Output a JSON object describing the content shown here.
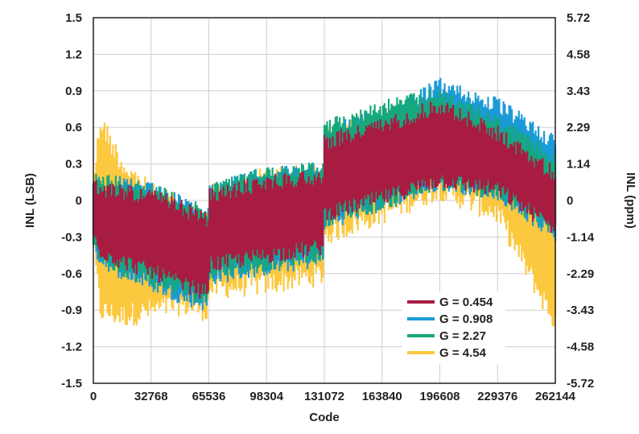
{
  "chart_data": {
    "type": "area",
    "title": "",
    "xlabel": "Code",
    "ylabel": "INL (LSB)",
    "y2label": "INL (ppm)",
    "xlim": [
      0,
      262144
    ],
    "ylim": [
      -1.5,
      1.5
    ],
    "x_ticks": [
      "0",
      "32768",
      "65536",
      "98304",
      "131072",
      "163840",
      "196608",
      "229376",
      "262144"
    ],
    "x_tick_values": [
      0,
      32768,
      65536,
      98304,
      131072,
      163840,
      196608,
      229376,
      262144
    ],
    "y_ticks": [
      "1.5",
      "1.2",
      "0.9",
      "0.6",
      "0.3",
      "0",
      "-0.3",
      "-0.6",
      "-0.9",
      "-1.2",
      "-1.5"
    ],
    "y_tick_values": [
      1.5,
      1.2,
      0.9,
      0.6,
      0.3,
      0,
      -0.3,
      -0.6,
      -0.9,
      -1.2,
      -1.5
    ],
    "y2_ticks": [
      "5.72",
      "4.58",
      "3.43",
      "2.29",
      "1.14",
      "0",
      "-1.14",
      "-2.29",
      "-3.43",
      "-4.58",
      "-5.72"
    ],
    "grid": true,
    "legend_position": "bottom-right",
    "series": [
      {
        "name": "G = 4.54",
        "color": "#fcc83f",
        "x": [
          0,
          4000,
          16000,
          32768,
          49152,
          65000,
          65536,
          98304,
          131000,
          131072,
          163840,
          196608,
          229376,
          262144
        ],
        "upper": [
          0.25,
          0.75,
          0.4,
          0.15,
          0.05,
          -0.08,
          0.15,
          0.28,
          0.32,
          0.62,
          0.76,
          0.93,
          0.71,
          0.42
        ],
        "lower": [
          -0.45,
          -1.0,
          -1.05,
          -1.0,
          -0.95,
          -1.0,
          -0.82,
          -0.78,
          -0.7,
          -0.38,
          -0.2,
          0.0,
          -0.2,
          -1.1
        ]
      },
      {
        "name": "G = 0.908",
        "color": "#1b9ad6",
        "x": [
          0,
          4000,
          16000,
          32768,
          49152,
          65000,
          65536,
          98304,
          131000,
          131072,
          163840,
          196608,
          229376,
          262144
        ],
        "upper": [
          0.22,
          0.2,
          0.2,
          0.15,
          0.05,
          -0.08,
          0.15,
          0.28,
          0.32,
          0.62,
          0.76,
          1.01,
          0.85,
          0.55
        ],
        "lower": [
          -0.42,
          -0.55,
          -0.65,
          -0.75,
          -0.85,
          -0.92,
          -0.7,
          -0.62,
          -0.55,
          -0.25,
          -0.1,
          0.08,
          0.0,
          -0.35
        ]
      },
      {
        "name": "G = 2.27",
        "color": "#16a87c",
        "x": [
          0,
          4000,
          16000,
          32768,
          49152,
          65000,
          65536,
          98304,
          131000,
          131072,
          163840,
          196608,
          229376,
          262144
        ],
        "upper": [
          0.24,
          0.22,
          0.22,
          0.15,
          0.06,
          -0.06,
          0.16,
          0.29,
          0.33,
          0.66,
          0.83,
          0.93,
          0.7,
          0.4
        ],
        "lower": [
          -0.4,
          -0.52,
          -0.62,
          -0.72,
          -0.8,
          -0.88,
          -0.65,
          -0.58,
          -0.5,
          -0.22,
          -0.08,
          0.08,
          0.0,
          -0.32
        ]
      },
      {
        "name": "G = 0.454",
        "color": "#a81c42",
        "x": [
          0,
          4000,
          16000,
          32768,
          49152,
          65000,
          65536,
          98304,
          131000,
          131072,
          163840,
          196608,
          229376,
          262144
        ],
        "upper": [
          0.18,
          0.15,
          0.15,
          0.1,
          0.02,
          -0.1,
          0.1,
          0.22,
          0.27,
          0.55,
          0.68,
          0.85,
          0.62,
          0.28
        ],
        "lower": [
          -0.35,
          -0.48,
          -0.57,
          -0.65,
          -0.75,
          -0.83,
          -0.6,
          -0.52,
          -0.45,
          -0.18,
          -0.05,
          0.1,
          0.02,
          -0.3
        ]
      }
    ],
    "legend": [
      {
        "label": "G = 0.454",
        "color": "#a81c42"
      },
      {
        "label": "G = 0.908",
        "color": "#1b9ad6"
      },
      {
        "label": "G = 2.27",
        "color": "#16a87c"
      },
      {
        "label": "G = 4.54",
        "color": "#fcc83f"
      }
    ]
  }
}
